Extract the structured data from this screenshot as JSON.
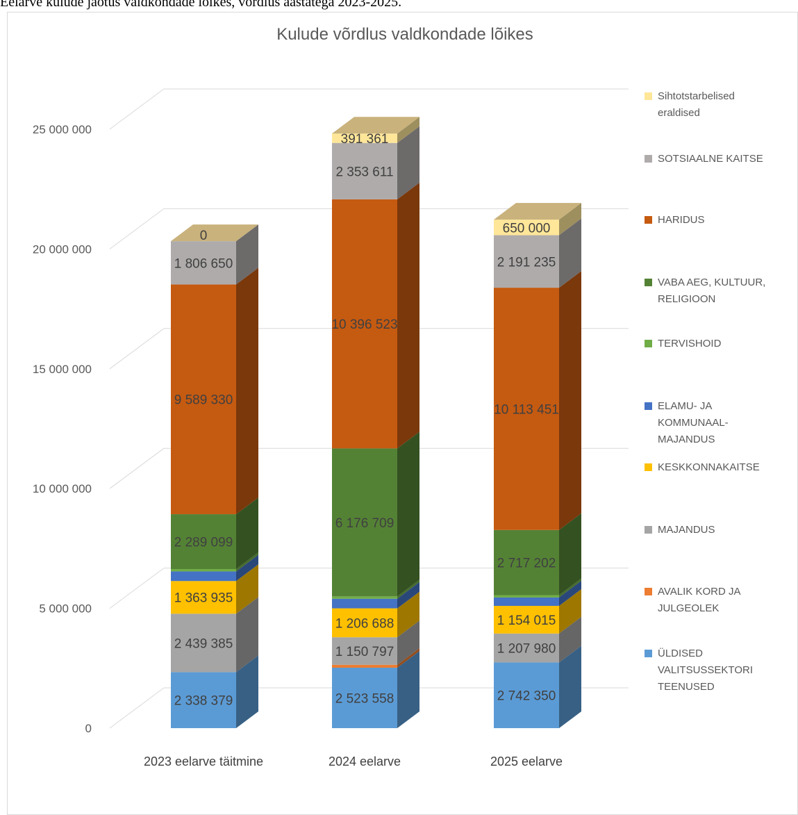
{
  "caption": "Eelarve kulude jaotus valdkondade lõikes, võrdlus aastatega 2023-2025.",
  "chart_data": {
    "type": "bar",
    "stacked": true,
    "three_d": true,
    "title": "Kulude võrdlus valdkondade lõikes",
    "xlabel": "",
    "ylabel": "",
    "ylim": [
      0,
      25000000
    ],
    "yticks": [
      0,
      5000000,
      10000000,
      15000000,
      20000000,
      25000000
    ],
    "ytick_labels": [
      "0",
      "5 000 000",
      "10 000 000",
      "15 000 000",
      "20 000 000",
      "25 000 000"
    ],
    "grid": true,
    "legend_position": "right",
    "categories": [
      "2023 eelarve täitmine",
      "2024 eelarve",
      "2025 eelarve"
    ],
    "series": [
      {
        "name": "ÜLDISED VALITSUSSEKTORI TEENUSED",
        "legend_lines": [
          "ÜLDISED",
          "VALITSUSSEKTORI",
          "TEENUSED"
        ],
        "color": "#5b9bd5",
        "values": [
          2338379,
          2523558,
          2742350
        ],
        "labels": [
          "2 338 379",
          "2 523 558",
          "2 742 350"
        ]
      },
      {
        "name": "AVALIK KORD JA JULGEOLEK",
        "legend_lines": [
          "AVALIK KORD JA",
          "JULGEOLEK"
        ],
        "color": "#ed7d31",
        "values": [
          0,
          120000,
          0
        ],
        "labels": [
          "",
          "",
          ""
        ]
      },
      {
        "name": "MAJANDUS",
        "legend_lines": [
          "MAJANDUS"
        ],
        "color": "#a5a5a5",
        "values": [
          2439385,
          1150797,
          1207980
        ],
        "labels": [
          "2 439 385",
          "1 150 797",
          "1 207 980"
        ]
      },
      {
        "name": "KESKKONNAKAITSE",
        "legend_lines": [
          "KESKKONNAKAITSE"
        ],
        "color": "#ffc000",
        "values": [
          1363935,
          1206688,
          1154015
        ],
        "labels": [
          "1 363 935",
          "1 206 688",
          "1 154 015"
        ]
      },
      {
        "name": "ELAMU- JA KOMMUNAAL-MAJANDUS",
        "legend_lines": [
          "ELAMU- JA",
          "KOMMUNAAL-",
          "MAJANDUS"
        ],
        "color": "#4472c4",
        "values": [
          400000,
          400000,
          350000
        ],
        "labels": [
          "",
          "",
          ""
        ]
      },
      {
        "name": "TERVISHOID",
        "legend_lines": [
          "TERVISHOID"
        ],
        "color": "#70ad47",
        "values": [
          100000,
          100000,
          100000
        ],
        "labels": [
          "",
          "",
          ""
        ]
      },
      {
        "name": "VABA AEG, KULTUUR, RELIGIOON",
        "legend_lines": [
          "VABA AEG, KULTUUR,",
          "RELIGIOON"
        ],
        "color": "#548235",
        "values": [
          2289099,
          6176709,
          2717202
        ],
        "labels": [
          "2 289 099",
          "6 176 709",
          "2 717 202"
        ]
      },
      {
        "name": "HARIDUS",
        "legend_lines": [
          "HARIDUS"
        ],
        "color": "#c55a11",
        "values": [
          9589330,
          10396523,
          10113451
        ],
        "labels": [
          "9 589 330",
          "10 396 523",
          "10 113 451"
        ]
      },
      {
        "name": "SOTSIAALNE KAITSE",
        "legend_lines": [
          "SOTSIAALNE KAITSE"
        ],
        "color": "#afabab",
        "values": [
          1806650,
          2353611,
          2191235
        ],
        "labels": [
          "1 806 650",
          "2 353 611",
          "2 191 235"
        ]
      },
      {
        "name": "Sihtotstarbelised eraldised",
        "legend_lines": [
          "Sihtotstarbelised",
          "eraldised"
        ],
        "color": "#ffe699",
        "values": [
          0,
          391361,
          650000
        ],
        "labels": [
          "0",
          "391 361",
          "650 000"
        ]
      }
    ],
    "top_face_color": "#c9b27c"
  }
}
